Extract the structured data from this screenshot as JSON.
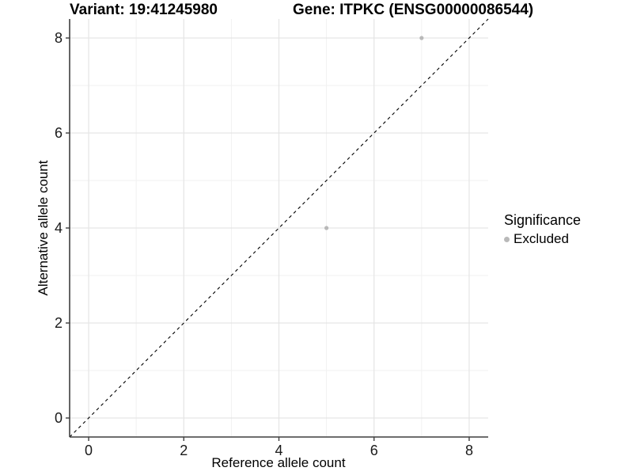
{
  "chart_data": {
    "type": "scatter",
    "title_left": "Variant: 19:41245980",
    "title_right": "Gene: ITPKC (ENSG00000086544)",
    "xlabel": "Reference allele count",
    "ylabel": "Alternative allele count",
    "xlim": [
      -0.4,
      8.4
    ],
    "ylim": [
      -0.4,
      8.4
    ],
    "x_major_ticks": [
      0,
      2,
      4,
      6,
      8
    ],
    "y_major_ticks": [
      0,
      2,
      4,
      6,
      8
    ],
    "x_minor_gridlines": [
      1,
      3,
      5,
      7
    ],
    "y_minor_gridlines": [
      1,
      3,
      5,
      7
    ],
    "grid": "on",
    "legend_position": "right",
    "legend_title": "Significance",
    "series": [
      {
        "name": "Excluded",
        "marker": "circle",
        "color": "#b9b9b9",
        "points": [
          {
            "x": 7,
            "y": 8
          },
          {
            "x": 5,
            "y": 4
          }
        ]
      }
    ],
    "reference_line": {
      "kind": "identity",
      "slope": 1,
      "intercept": 0,
      "linestyle": "dashed",
      "color": "#000000"
    }
  },
  "style": {
    "background": "#ffffff",
    "axis_line_color": "#3f3f3f",
    "tick_color": "#3f3f3f",
    "major_grid_color": "#e5e5e5",
    "minor_grid_color": "#f1f1f1",
    "tick_label_color": "#1a1a1a"
  }
}
